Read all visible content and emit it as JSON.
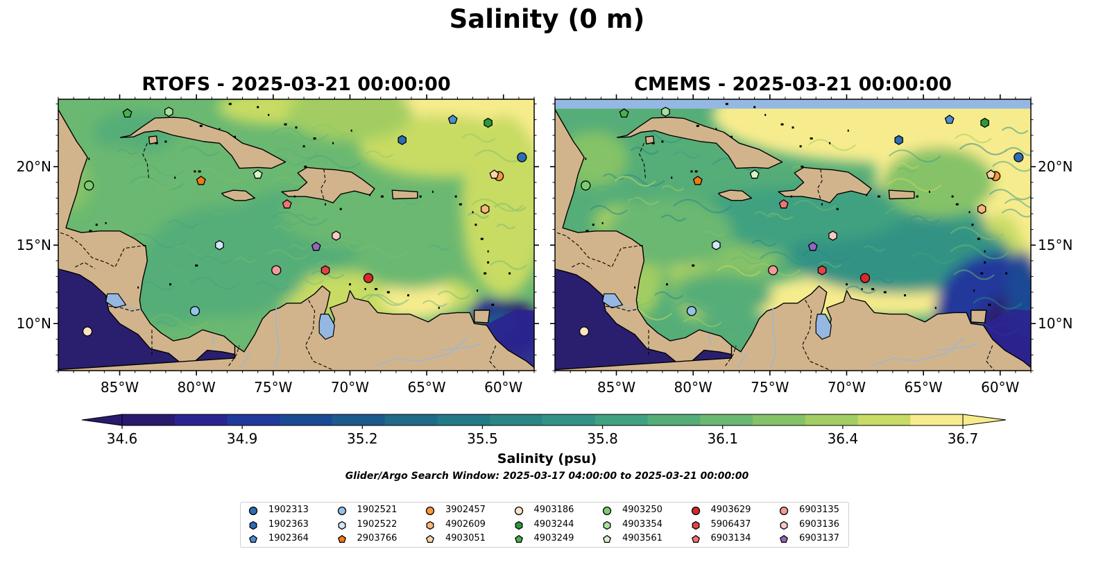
{
  "figure": {
    "title": "Salinity (0 m)",
    "panels": [
      {
        "id": "rtofs",
        "title": "RTOFS - 2025-03-21 00:00:00"
      },
      {
        "id": "cmems",
        "title": "CMEMS - 2025-03-21 00:00:00"
      }
    ],
    "lon_ticks": [
      "85°W",
      "80°W",
      "75°W",
      "70°W",
      "65°W",
      "60°W"
    ],
    "lat_ticks": [
      "20°N",
      "15°N",
      "10°N"
    ],
    "colorbar": {
      "label": "Salinity (psu)",
      "tick_labels": [
        "34.6",
        "34.9",
        "35.2",
        "35.5",
        "35.8",
        "36.1",
        "36.4",
        "36.7"
      ],
      "min": 34.6,
      "max": 36.7,
      "extend": "both"
    },
    "search_window": "Glider/Argo Search Window: 2025-03-17 04:00:00 to 2025-03-21 00:00:00"
  },
  "map_data": {
    "extent": {
      "lon": [
        -89,
        -58
      ],
      "lat": [
        7,
        24.3
      ]
    },
    "colors": {
      "land": "#d2b48c",
      "lakes": "#95b8e3",
      "pacific": "#2a1f6e",
      "cmems_nodata": "#95b8e3",
      "colormap": [
        "#2a1a6e",
        "#2b2490",
        "#21399b",
        "#1b4a94",
        "#1c5a8d",
        "#1f6b89",
        "#247986",
        "#2a8685",
        "#329384",
        "#40a180",
        "#55ad78",
        "#6ab871",
        "#85c268",
        "#a3cd62",
        "#c8db64",
        "#f7ec8d"
      ]
    },
    "floats": [
      {
        "id": "1902313",
        "lon": -58.8,
        "lat": 20.6,
        "marker": "circle",
        "color": "#2e6db3"
      },
      {
        "id": "1902363",
        "lon": -66.6,
        "lat": 21.7,
        "marker": "hexagon",
        "color": "#2e6db3"
      },
      {
        "id": "1902364",
        "lon": -63.3,
        "lat": 23.0,
        "marker": "pentagon",
        "color": "#4b8fd1"
      },
      {
        "id": "1902521",
        "lon": -80.1,
        "lat": 10.8,
        "marker": "circle",
        "color": "#94c2e8"
      },
      {
        "id": "1902522",
        "lon": -78.5,
        "lat": 15.0,
        "marker": "hexagon",
        "color": "#d0e7f7"
      },
      {
        "id": "2903766",
        "lon": -79.7,
        "lat": 19.1,
        "marker": "pentagon",
        "color": "#ee7b12"
      },
      {
        "id": "3902457",
        "lon": -60.3,
        "lat": 19.4,
        "marker": "circle",
        "color": "#f49a3c"
      },
      {
        "id": "4902609",
        "lon": -61.2,
        "lat": 17.3,
        "marker": "hexagon",
        "color": "#f6b778"
      },
      {
        "id": "4903051",
        "lon": -60.6,
        "lat": 19.5,
        "marker": "pentagon",
        "color": "#fcd3a9"
      },
      {
        "id": "4903186",
        "lon": -87.1,
        "lat": 9.5,
        "marker": "circle",
        "color": "#fde3c6"
      },
      {
        "id": "4903244",
        "lon": -61.0,
        "lat": 22.8,
        "marker": "hexagon",
        "color": "#2a9a3a"
      },
      {
        "id": "4903249",
        "lon": -84.5,
        "lat": 23.4,
        "marker": "pentagon",
        "color": "#48b04e"
      },
      {
        "id": "4903250",
        "lon": -87.0,
        "lat": 18.8,
        "marker": "circle",
        "color": "#7ccc6f"
      },
      {
        "id": "4903354",
        "lon": -81.8,
        "lat": 23.5,
        "marker": "hexagon",
        "color": "#a8e09c"
      },
      {
        "id": "4903561",
        "lon": -76.0,
        "lat": 19.5,
        "marker": "pentagon",
        "color": "#d6f2c9"
      },
      {
        "id": "4903629",
        "lon": -68.8,
        "lat": 12.9,
        "marker": "circle",
        "color": "#d62a2a"
      },
      {
        "id": "5906437",
        "lon": -71.6,
        "lat": 13.4,
        "marker": "hexagon",
        "color": "#e04545"
      },
      {
        "id": "6903134",
        "lon": -74.1,
        "lat": 17.6,
        "marker": "pentagon",
        "color": "#ef7474"
      },
      {
        "id": "6903135",
        "lon": -74.8,
        "lat": 13.4,
        "marker": "circle",
        "color": "#f29a9a"
      },
      {
        "id": "6903136",
        "lon": -70.9,
        "lat": 15.6,
        "marker": "hexagon",
        "color": "#f9c8c8"
      },
      {
        "id": "6903137",
        "lon": -72.2,
        "lat": 14.9,
        "marker": "pentagon",
        "color": "#9466bd"
      }
    ]
  }
}
